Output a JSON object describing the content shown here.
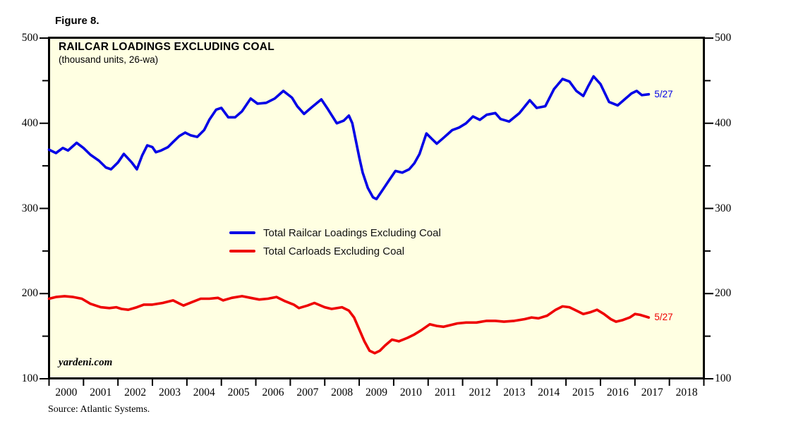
{
  "figure_label": "Figure 8.",
  "chart_data": {
    "type": "line",
    "title": "RAILCAR LOADINGS EXCLUDING COAL",
    "subtitle": "(thousand units, 26-wa)",
    "watermark": "yardeni.com",
    "source": "Source: Atlantic Systems.",
    "plot_background": "#FFFFE2",
    "axis_color": "#000000",
    "x_axis": {
      "range": [
        2000,
        2019
      ],
      "year_labels": [
        "2000",
        "2001",
        "2002",
        "2003",
        "2004",
        "2005",
        "2006",
        "2007",
        "2008",
        "2009",
        "2010",
        "2011",
        "2012",
        "2013",
        "2014",
        "2015",
        "2016",
        "2017",
        "2018"
      ]
    },
    "y_axis": {
      "range": [
        100,
        500
      ],
      "major_ticks": [
        500,
        400,
        300,
        200,
        100
      ],
      "minor_ticks": [
        450,
        350,
        250,
        150
      ],
      "sides": "both"
    },
    "legend_position": "inside-center-left",
    "series": [
      {
        "name": "Total Railcar Loadings Excluding Coal",
        "color": "#0000E6",
        "end_label": "5/27",
        "points": [
          [
            2000.0,
            369
          ],
          [
            2000.2,
            365
          ],
          [
            2000.4,
            371
          ],
          [
            2000.55,
            368
          ],
          [
            2000.8,
            377
          ],
          [
            2001.0,
            371
          ],
          [
            2001.2,
            363
          ],
          [
            2001.45,
            356
          ],
          [
            2001.65,
            348
          ],
          [
            2001.8,
            346
          ],
          [
            2002.0,
            354
          ],
          [
            2002.17,
            364
          ],
          [
            2002.4,
            354
          ],
          [
            2002.55,
            346
          ],
          [
            2002.7,
            362
          ],
          [
            2002.85,
            374
          ],
          [
            2003.0,
            372
          ],
          [
            2003.1,
            366
          ],
          [
            2003.25,
            368
          ],
          [
            2003.45,
            372
          ],
          [
            2003.6,
            378
          ],
          [
            2003.78,
            385
          ],
          [
            2003.95,
            389
          ],
          [
            2004.1,
            386
          ],
          [
            2004.3,
            384
          ],
          [
            2004.5,
            392
          ],
          [
            2004.65,
            404
          ],
          [
            2004.85,
            416
          ],
          [
            2005.0,
            418
          ],
          [
            2005.2,
            407
          ],
          [
            2005.4,
            407
          ],
          [
            2005.6,
            414
          ],
          [
            2005.85,
            429
          ],
          [
            2006.05,
            423
          ],
          [
            2006.3,
            424
          ],
          [
            2006.55,
            429
          ],
          [
            2006.8,
            438
          ],
          [
            2007.05,
            430
          ],
          [
            2007.2,
            420
          ],
          [
            2007.4,
            411
          ],
          [
            2007.6,
            418
          ],
          [
            2007.9,
            428
          ],
          [
            2008.1,
            416
          ],
          [
            2008.35,
            400
          ],
          [
            2008.55,
            403
          ],
          [
            2008.7,
            409
          ],
          [
            2008.8,
            400
          ],
          [
            2008.9,
            380
          ],
          [
            2009.0,
            360
          ],
          [
            2009.1,
            342
          ],
          [
            2009.25,
            324
          ],
          [
            2009.4,
            313
          ],
          [
            2009.5,
            311
          ],
          [
            2009.7,
            323
          ],
          [
            2009.9,
            335
          ],
          [
            2010.05,
            344
          ],
          [
            2010.25,
            342
          ],
          [
            2010.45,
            346
          ],
          [
            2010.6,
            353
          ],
          [
            2010.75,
            364
          ],
          [
            2010.95,
            388
          ],
          [
            2011.1,
            382
          ],
          [
            2011.25,
            376
          ],
          [
            2011.45,
            383
          ],
          [
            2011.7,
            392
          ],
          [
            2011.9,
            395
          ],
          [
            2012.1,
            400
          ],
          [
            2012.3,
            408
          ],
          [
            2012.5,
            404
          ],
          [
            2012.7,
            410
          ],
          [
            2012.95,
            412
          ],
          [
            2013.1,
            405
          ],
          [
            2013.35,
            402
          ],
          [
            2013.65,
            412
          ],
          [
            2013.95,
            427
          ],
          [
            2014.15,
            418
          ],
          [
            2014.4,
            420
          ],
          [
            2014.65,
            440
          ],
          [
            2014.9,
            452
          ],
          [
            2015.1,
            449
          ],
          [
            2015.3,
            438
          ],
          [
            2015.5,
            432
          ],
          [
            2015.65,
            444
          ],
          [
            2015.8,
            455
          ],
          [
            2016.0,
            446
          ],
          [
            2016.25,
            425
          ],
          [
            2016.5,
            421
          ],
          [
            2016.7,
            428
          ],
          [
            2016.9,
            435
          ],
          [
            2017.05,
            438
          ],
          [
            2017.2,
            433
          ],
          [
            2017.4,
            434
          ]
        ]
      },
      {
        "name": "Total Carloads Excluding Coal",
        "color": "#EE0000",
        "end_label": "5/27",
        "points": [
          [
            2000.0,
            194
          ],
          [
            2000.2,
            196
          ],
          [
            2000.45,
            197
          ],
          [
            2000.7,
            196
          ],
          [
            2000.95,
            194
          ],
          [
            2001.2,
            188
          ],
          [
            2001.5,
            184
          ],
          [
            2001.75,
            183
          ],
          [
            2001.95,
            184
          ],
          [
            2002.1,
            182
          ],
          [
            2002.3,
            181
          ],
          [
            2002.55,
            184
          ],
          [
            2002.75,
            187
          ],
          [
            2003.0,
            187
          ],
          [
            2003.3,
            189
          ],
          [
            2003.6,
            192
          ],
          [
            2003.9,
            186
          ],
          [
            2004.15,
            190
          ],
          [
            2004.4,
            194
          ],
          [
            2004.65,
            194
          ],
          [
            2004.9,
            195
          ],
          [
            2005.05,
            192
          ],
          [
            2005.3,
            195
          ],
          [
            2005.6,
            197
          ],
          [
            2005.85,
            195
          ],
          [
            2006.1,
            193
          ],
          [
            2006.35,
            194
          ],
          [
            2006.6,
            196
          ],
          [
            2006.85,
            191
          ],
          [
            2007.1,
            187
          ],
          [
            2007.25,
            183
          ],
          [
            2007.5,
            186
          ],
          [
            2007.7,
            189
          ],
          [
            2008.0,
            184
          ],
          [
            2008.2,
            182
          ],
          [
            2008.5,
            184
          ],
          [
            2008.7,
            180
          ],
          [
            2008.85,
            172
          ],
          [
            2009.0,
            158
          ],
          [
            2009.15,
            144
          ],
          [
            2009.3,
            133
          ],
          [
            2009.45,
            130
          ],
          [
            2009.6,
            133
          ],
          [
            2009.75,
            139
          ],
          [
            2009.95,
            146
          ],
          [
            2010.15,
            144
          ],
          [
            2010.4,
            148
          ],
          [
            2010.6,
            152
          ],
          [
            2010.8,
            157
          ],
          [
            2011.05,
            164
          ],
          [
            2011.25,
            162
          ],
          [
            2011.45,
            161
          ],
          [
            2011.65,
            163
          ],
          [
            2011.85,
            165
          ],
          [
            2012.1,
            166
          ],
          [
            2012.4,
            166
          ],
          [
            2012.7,
            168
          ],
          [
            2012.95,
            168
          ],
          [
            2013.2,
            167
          ],
          [
            2013.5,
            168
          ],
          [
            2013.8,
            170
          ],
          [
            2014.0,
            172
          ],
          [
            2014.2,
            171
          ],
          [
            2014.45,
            174
          ],
          [
            2014.7,
            181
          ],
          [
            2014.9,
            185
          ],
          [
            2015.1,
            184
          ],
          [
            2015.3,
            180
          ],
          [
            2015.5,
            176
          ],
          [
            2015.7,
            178
          ],
          [
            2015.9,
            181
          ],
          [
            2016.1,
            176
          ],
          [
            2016.3,
            170
          ],
          [
            2016.45,
            167
          ],
          [
            2016.65,
            169
          ],
          [
            2016.85,
            172
          ],
          [
            2017.0,
            176
          ],
          [
            2017.15,
            175
          ],
          [
            2017.4,
            172
          ]
        ]
      }
    ]
  }
}
